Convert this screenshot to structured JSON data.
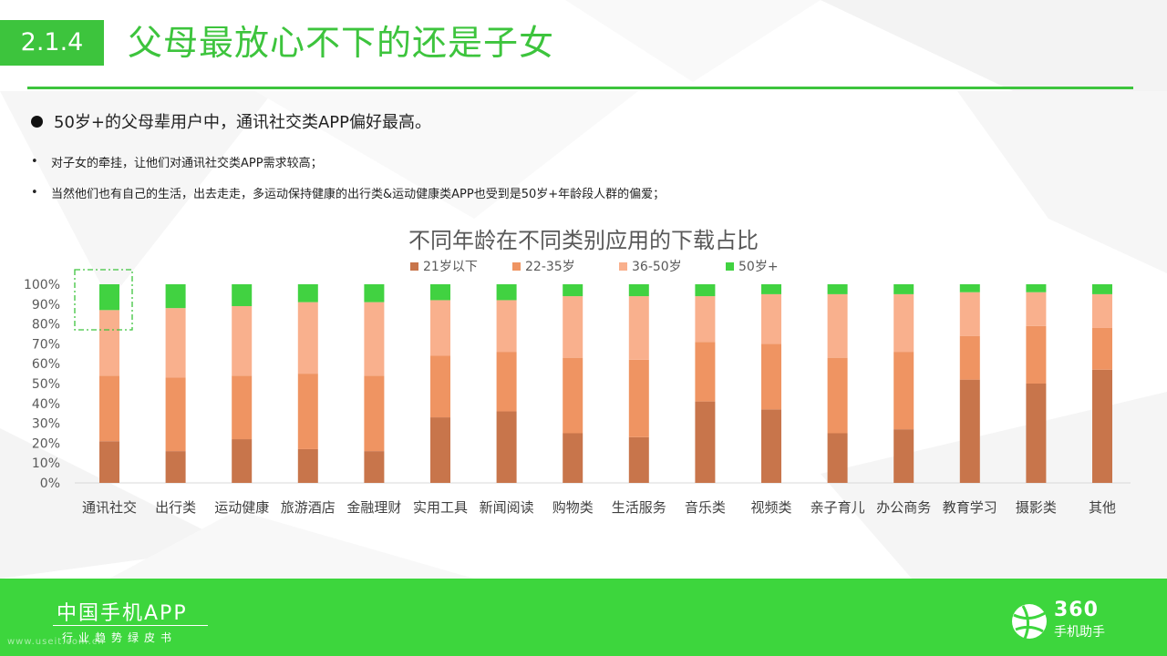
{
  "header": {
    "section_number": "2.1.4",
    "title": "父母最放心不下的还是子女"
  },
  "bullets": {
    "main": "50岁+的父母辈用户中，通讯社交类APP偏好最高。",
    "sub": [
      "对子女的牵挂，让他们对通讯社交类APP需求较高；",
      "当然他们也有自己的生活，出去走走，多运动保持健康的出行类&运动健康类APP也受到是50岁+年龄段人群的偏爱；"
    ],
    "sub_mark": "•"
  },
  "chart_data": {
    "type": "bar",
    "stacked": true,
    "percent": true,
    "title": "不同年龄在不同类别应用的下载占比",
    "legend_position": "top",
    "categories": [
      "通讯社交",
      "出行类",
      "运动健康",
      "旅游酒店",
      "金融理财",
      "实用工具",
      "新闻阅读",
      "购物类",
      "生活服务",
      "音乐类",
      "视频类",
      "亲子育儿",
      "办公商务",
      "教育学习",
      "摄影类",
      "其他"
    ],
    "series": [
      {
        "name": "21岁以下",
        "color": "#c8754b",
        "values": [
          21,
          16,
          22,
          17,
          16,
          33,
          36,
          25,
          23,
          41,
          37,
          25,
          27,
          52,
          50,
          57
        ]
      },
      {
        "name": "22-35岁",
        "color": "#ef9462",
        "values": [
          33,
          37,
          32,
          38,
          38,
          31,
          30,
          38,
          39,
          30,
          33,
          38,
          39,
          22,
          29,
          21
        ]
      },
      {
        "name": "36-50岁",
        "color": "#f9b08d",
        "values": [
          33,
          35,
          35,
          36,
          37,
          28,
          26,
          31,
          32,
          23,
          25,
          32,
          29,
          22,
          17,
          17
        ]
      },
      {
        "name": "50岁+",
        "color": "#41d241",
        "values": [
          13,
          12,
          11,
          9,
          9,
          8,
          8,
          6,
          6,
          6,
          5,
          5,
          5,
          4,
          4,
          5
        ]
      }
    ],
    "yticks": [
      "0%",
      "10%",
      "20%",
      "30%",
      "40%",
      "50%",
      "60%",
      "70%",
      "80%",
      "90%",
      "100%"
    ],
    "ylim": [
      0,
      100
    ],
    "grid": false,
    "highlight_category": "通讯社交",
    "highlight_color": "#3dc43d"
  },
  "footer": {
    "brand_title": "中国手机APP",
    "brand_subtitle": "行业趋势绿皮书",
    "url": "www.useit.com.cn",
    "logo_number": "360",
    "logo_text": "手机助手",
    "logo_icon": "basketball-icon"
  },
  "colors": {
    "accent": "#3dc43d",
    "footer": "#3dd63d"
  }
}
